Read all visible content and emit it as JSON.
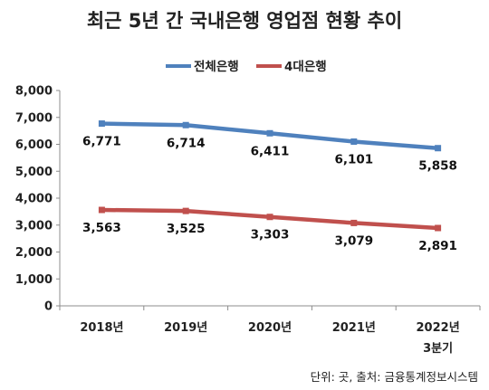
{
  "chart_data": {
    "type": "line",
    "title": "최근 5년 간 국내은행 영업점 현황 추이",
    "categories": [
      "2018년",
      "2019년",
      "2020년",
      "2021년",
      "2022년"
    ],
    "category_sublabels": [
      "",
      "",
      "",
      "",
      "3분기"
    ],
    "ylim": [
      0,
      8000
    ],
    "yticks": [
      "0",
      "1,000",
      "2,000",
      "3,000",
      "4,000",
      "5,000",
      "6,000",
      "7,000",
      "8,000"
    ],
    "grid": false,
    "legend_position": "top-center",
    "series": [
      {
        "name": "전체은행",
        "color": "#4f81bd",
        "values": [
          6771,
          6714,
          6411,
          6101,
          5858
        ],
        "labels": [
          "6,771",
          "6,714",
          "6,411",
          "6,101",
          "5,858"
        ]
      },
      {
        "name": "4대은행",
        "color": "#c0504d",
        "values": [
          3563,
          3525,
          3303,
          3079,
          2891
        ],
        "labels": [
          "3,563",
          "3,525",
          "3,303",
          "3,079",
          "2,891"
        ]
      }
    ],
    "source_note": "단위: 곳, 출처: 금융통계정보시스템"
  }
}
